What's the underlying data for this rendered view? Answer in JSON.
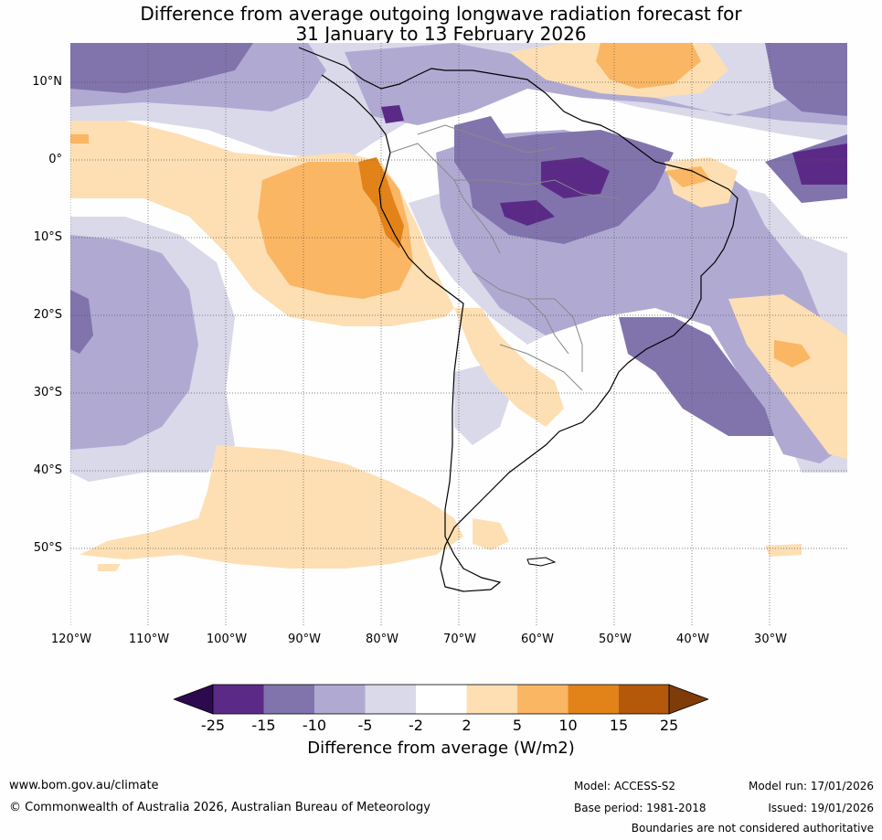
{
  "title_line1": "Difference from average outgoing longwave radiation forecast for",
  "title_line2": "31 January to 13 February 2026",
  "map": {
    "lat_labels": [
      "10°N",
      "0°",
      "10°S",
      "20°S",
      "30°S",
      "40°S",
      "50°S"
    ],
    "lon_labels": [
      "120°W",
      "110°W",
      "100°W",
      "90°W",
      "80°W",
      "70°W",
      "60°W",
      "50°W",
      "40°W",
      "30°W"
    ],
    "region": "South America and surrounding oceans"
  },
  "colorbar": {
    "ticks": [
      "-25",
      "-15",
      "-10",
      "-5",
      "-2",
      "2",
      "5",
      "10",
      "15",
      "25"
    ],
    "label": "Difference from average (W/m2)",
    "colors": {
      "below_-25": "#2d0a4e",
      "-25_to_-15": "#5b2a87",
      "-15_to_-10": "#8174ad",
      "-10_to_-5": "#b0aad3",
      "-5_to_-2": "#d9d9ea",
      "-2_to_2": "#ffffff",
      "2_to_5": "#fddfb3",
      "5_to_10": "#fbb663",
      "10_to_15": "#e2831a",
      "15_to_25": "#b45809",
      "above_25": "#7f3b08"
    }
  },
  "footer": {
    "website": "www.bom.gov.au/climate",
    "copyright": "© Commonwealth of Australia 2026, Australian Bureau of Meteorology",
    "model": "Model: ACCESS-S2",
    "base_period": "Base period: 1981-2018",
    "model_run": "Model run: 17/01/2026",
    "issued": "Issued: 19/01/2026",
    "disclaimer": "Boundaries are not considered authoritative"
  }
}
